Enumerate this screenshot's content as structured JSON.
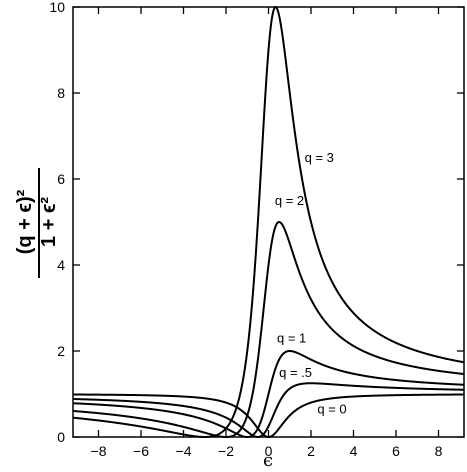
{
  "chart_data": {
    "type": "line",
    "title": "",
    "xlabel": "ϵ",
    "ylabel": {
      "numerator": "(q + ϵ)²",
      "denominator": "1 + ϵ²"
    },
    "xlim": [
      -9.2,
      9.2
    ],
    "ylim": [
      0,
      10
    ],
    "x_ticks": [
      -8,
      -6,
      -4,
      -2,
      0,
      2,
      4,
      6,
      8
    ],
    "x_tick_labels": [
      "−8",
      "−6",
      "−4",
      "−2",
      "0",
      "2",
      "4",
      "6",
      "8"
    ],
    "y_ticks": [
      0,
      2,
      4,
      6,
      8,
      10
    ],
    "y_tick_labels": [
      "0",
      "2",
      "4",
      "6",
      "8",
      "10"
    ],
    "grid": false,
    "series": [
      {
        "q": 3,
        "label": "q = 3"
      },
      {
        "q": 2,
        "label": "q = 2"
      },
      {
        "q": 1,
        "label": "q = 1"
      },
      {
        "q": 0.5,
        "label": "q = .5"
      },
      {
        "q": 0,
        "label": "q = 0"
      }
    ]
  }
}
